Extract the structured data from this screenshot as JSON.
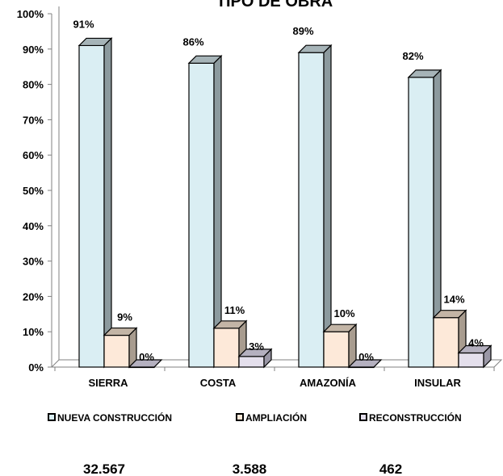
{
  "chart_data": {
    "type": "bar",
    "title": "TIPO DE OBRA",
    "categories": [
      "SIERRA",
      "COSTA",
      "AMAZONÍA",
      "INSULAR"
    ],
    "series": [
      {
        "name": "NUEVA CONSTRUCCIÓN",
        "values": [
          91,
          86,
          89,
          82
        ],
        "labels": [
          "91%",
          "86%",
          "89%",
          "82%"
        ]
      },
      {
        "name": "AMPLIACIÓN",
        "values": [
          9,
          11,
          10,
          14
        ],
        "labels": [
          "9%",
          "11%",
          "10%",
          "14%"
        ]
      },
      {
        "name": "RECONSTRUCCIÓN",
        "values": [
          0,
          3,
          0,
          4
        ],
        "labels": [
          "0%",
          "3%",
          "0%",
          "4%"
        ]
      }
    ],
    "ylim": [
      0,
      100
    ],
    "yticks": [
      "0%",
      "10%",
      "20%",
      "30%",
      "40%",
      "50%",
      "60%",
      "70%",
      "80%",
      "90%",
      "100%"
    ],
    "legend_position": "bottom",
    "colors": {
      "front": [
        "#DAEEF3",
        "#FDE9D9",
        "#E4DFEC"
      ],
      "side": [
        "#8C9A9E",
        "#A89C8F",
        "#9A97A6"
      ],
      "top": [
        "#A6B4B8",
        "#C3B5A6",
        "#B4B0BF"
      ]
    },
    "grid": false
  },
  "totals": [
    "32.567",
    "3.588",
    "462"
  ]
}
